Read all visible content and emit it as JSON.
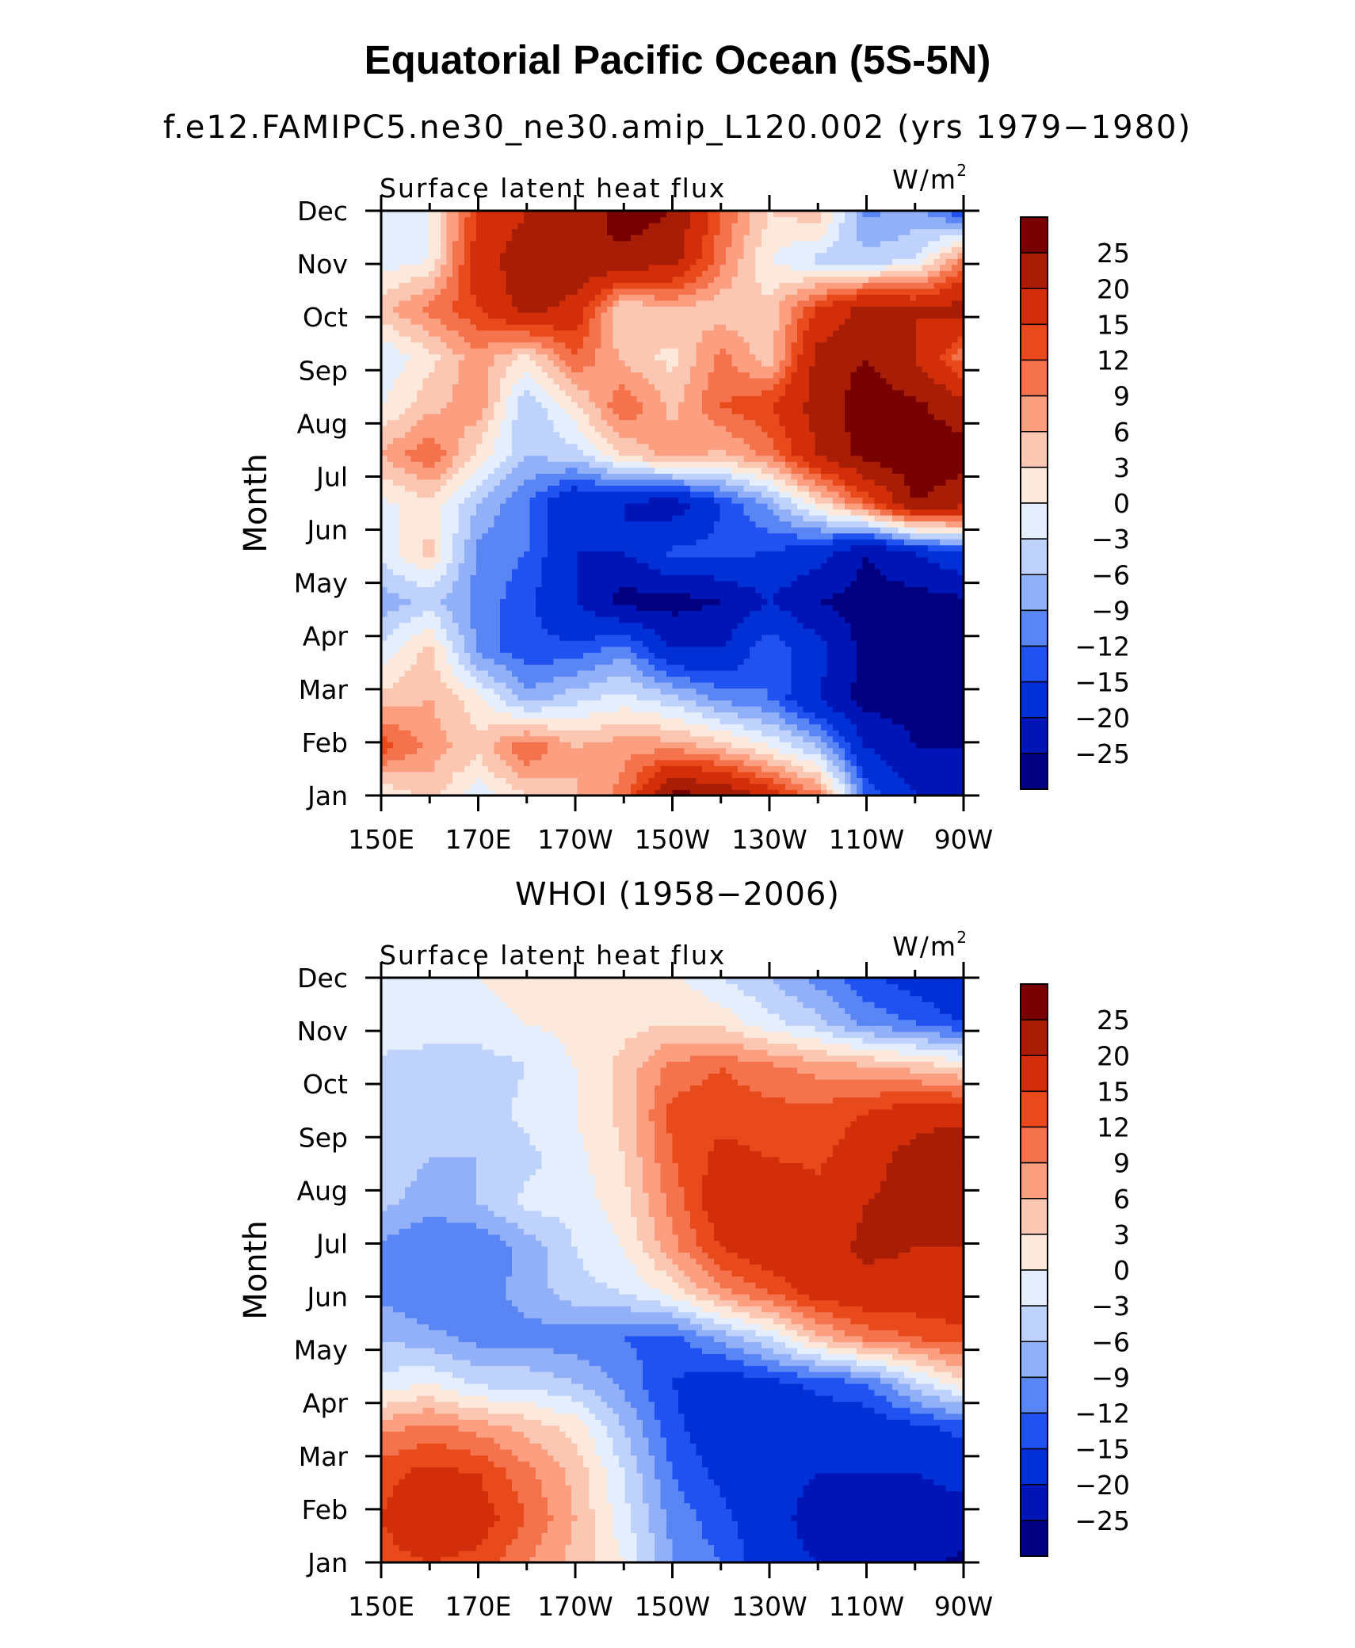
{
  "title": "Equatorial Pacific Ocean (5S-5N)",
  "subtitle": "f.e12.FAMIPC5.ne30_ne30.amip_L120.002 (yrs 1979−1980)",
  "panel2_title": "WHOI (1958−2006)",
  "chart_data": [
    {
      "type": "heatmap",
      "panel_title": "f.e12.FAMIPC5.ne30_ne30.amip_L120.002 (yrs 1979−1980)",
      "variable": "Surface latent heat flux",
      "units": "W/m",
      "units_sup": "2",
      "ylabel": "Month",
      "xlabel": "",
      "x_tick_labels": [
        "150E",
        "170E",
        "170W",
        "150W",
        "130W",
        "110W",
        "90W"
      ],
      "y_tick_labels": [
        "Jan",
        "Feb",
        "Mar",
        "Apr",
        "May",
        "Jun",
        "Jul",
        "Aug",
        "Sep",
        "Oct",
        "Nov",
        "Dec"
      ],
      "x_range_deg_east": [
        150,
        270
      ],
      "x_grid_deg_east": [
        150,
        160,
        170,
        180,
        190,
        200,
        210,
        220,
        230,
        240,
        250,
        260,
        270
      ],
      "values": [
        [
          0,
          4,
          -2,
          3,
          6,
          10,
          27,
          25,
          18,
          10,
          -12,
          -20,
          -20
        ],
        [
          14,
          8,
          4,
          12,
          6,
          8,
          8,
          5,
          0,
          -6,
          -20,
          -25,
          -25
        ],
        [
          4,
          6,
          1,
          -8,
          -4,
          -2,
          -5,
          -10,
          -12,
          -20,
          -27,
          -27,
          -26
        ],
        [
          -2,
          4,
          -10,
          -14,
          -14,
          -10,
          -20,
          -20,
          -12,
          -18,
          -27,
          -27,
          -27
        ],
        [
          -8,
          -5,
          -10,
          -14,
          -20,
          -27,
          -27,
          -25,
          -20,
          -25,
          -27,
          -27,
          -26
        ],
        [
          -2,
          4,
          -10,
          -12,
          -20,
          -20,
          -14,
          -14,
          -15,
          -18,
          -25,
          -20,
          -15
        ],
        [
          -1,
          2,
          -6,
          -12,
          -20,
          -20,
          -23,
          -15,
          -8,
          2,
          12,
          25,
          22
        ],
        [
          6,
          12,
          2,
          -6,
          -4,
          3,
          8,
          5,
          10,
          20,
          27,
          28,
          27
        ],
        [
          0,
          5,
          8,
          -6,
          2,
          12,
          5,
          12,
          15,
          22,
          28,
          26,
          22
        ],
        [
          -3,
          2,
          8,
          2,
          12,
          5,
          2,
          10,
          4,
          22,
          25,
          20,
          10
        ],
        [
          5,
          10,
          15,
          22,
          18,
          3,
          6,
          4,
          4,
          15,
          22,
          20,
          22
        ],
        [
          -2,
          0,
          18,
          23,
          25,
          24,
          22,
          10,
          0,
          -4,
          -5,
          -3,
          10
        ],
        [
          -3,
          0,
          15,
          20,
          22,
          27,
          25,
          12,
          3,
          5,
          -10,
          -8,
          -15
        ]
      ]
    },
    {
      "type": "heatmap",
      "panel_title": "WHOI (1958−2006)",
      "variable": "Surface latent heat flux",
      "units": "W/m",
      "units_sup": "2",
      "ylabel": "Month",
      "xlabel": "",
      "x_tick_labels": [
        "150E",
        "170E",
        "170W",
        "150W",
        "130W",
        "110W",
        "90W"
      ],
      "y_tick_labels": [
        "Jan",
        "Feb",
        "Mar",
        "Apr",
        "May",
        "Jun",
        "Jul",
        "Aug",
        "Sep",
        "Oct",
        "Nov",
        "Dec"
      ],
      "x_range_deg_east": [
        150,
        270
      ],
      "x_grid_deg_east": [
        150,
        160,
        170,
        180,
        190,
        200,
        210,
        220,
        230,
        240,
        250,
        260,
        270
      ],
      "values": [
        [
          14,
          15,
          14,
          9,
          5,
          0,
          -9,
          -12,
          -18,
          -20,
          -22,
          -24,
          -26
        ],
        [
          15,
          18,
          17,
          12,
          6,
          -2,
          -10,
          -14,
          -18,
          -22,
          -24,
          -24,
          -22
        ],
        [
          14,
          16,
          15,
          10,
          5,
          -3,
          -12,
          -16,
          -18,
          -20,
          -20,
          -20,
          -18
        ],
        [
          8,
          10,
          8,
          5,
          2,
          -6,
          -14,
          -18,
          -18,
          -18,
          -18,
          -16,
          -14
        ],
        [
          -2,
          0,
          -4,
          -4,
          -6,
          -10,
          -15,
          -18,
          -16,
          -14,
          -12,
          -4,
          2
        ],
        [
          -6,
          -8,
          -10,
          -10,
          -11,
          -12,
          -13,
          -8,
          -3,
          5,
          10,
          12,
          14
        ],
        [
          -10,
          -12,
          -10,
          -8,
          -4,
          -3,
          1,
          8,
          12,
          17,
          18,
          18,
          18
        ],
        [
          -10,
          -12,
          -12,
          -8,
          -3,
          0,
          8,
          15,
          18,
          18,
          21,
          20,
          20
        ],
        [
          -5,
          -8,
          -6,
          -2,
          -2,
          2,
          10,
          18,
          20,
          17,
          20,
          22,
          22
        ],
        [
          -3,
          -6,
          -6,
          -4,
          -1,
          3,
          12,
          16,
          15,
          14,
          18,
          22,
          25
        ],
        [
          -3,
          -4,
          -5,
          -2,
          0,
          4,
          13,
          14,
          13,
          13,
          15,
          18,
          18
        ],
        [
          -4,
          -4,
          -5,
          -3,
          0,
          4,
          10,
          12,
          10,
          8,
          7,
          5,
          3
        ],
        [
          -1,
          -2,
          -1,
          0,
          1,
          2,
          3,
          2,
          -2,
          -5,
          -10,
          -12,
          -15
        ],
        [
          0,
          -1,
          0,
          1,
          2,
          2,
          1,
          -3,
          -6,
          -10,
          -14,
          -17,
          -20
        ]
      ]
    }
  ],
  "colorbar": {
    "levels": [
      -25,
      -20,
      -15,
      -12,
      -9,
      -6,
      -3,
      0,
      3,
      6,
      9,
      12,
      15,
      20,
      25
    ],
    "level_labels": [
      "25",
      "20",
      "15",
      "12",
      "9",
      "6",
      "3",
      "0",
      "−3",
      "−6",
      "−9",
      "−12",
      "−15",
      "−20",
      "−25"
    ],
    "colors": [
      "#000080",
      "#0015b5",
      "#0030d6",
      "#1f52f0",
      "#5a86f5",
      "#91b0f8",
      "#bed2fb",
      "#e4eefd",
      "#fde9dc",
      "#fcc7b2",
      "#fb9f80",
      "#f5734c",
      "#e84a1c",
      "#d22e0a",
      "#a81d05",
      "#780000"
    ]
  }
}
